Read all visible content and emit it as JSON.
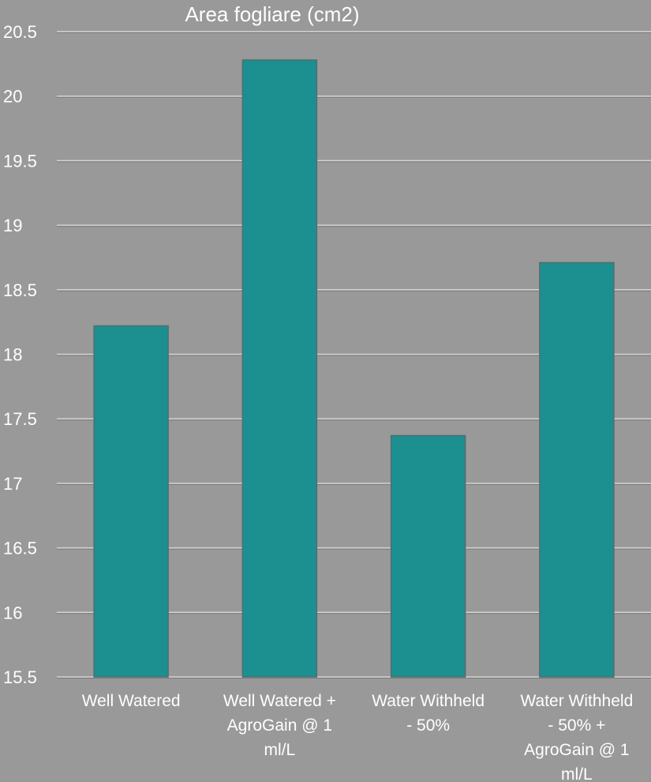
{
  "chart_data": {
    "type": "bar",
    "title": "Area fogliare (cm2)",
    "categories": [
      [
        "Well Watered"
      ],
      [
        "Well Watered +",
        "AgroGain @ 1",
        "ml/L"
      ],
      [
        "Water Withheld",
        "- 50%"
      ],
      [
        "Water Withheld",
        "- 50% +",
        "AgroGain @ 1",
        "ml/L"
      ]
    ],
    "values": [
      18.22,
      20.28,
      17.37,
      18.71
    ],
    "ylim": [
      15.5,
      20.5
    ],
    "yticks": [
      "15.5",
      "16",
      "16.5",
      "17",
      "17.5",
      "18",
      "18.5",
      "19",
      "19.5",
      "20",
      "20.5"
    ],
    "ytick_values": [
      15.5,
      16,
      16.5,
      17,
      17.5,
      18,
      18.5,
      19,
      19.5,
      20,
      20.5
    ],
    "grid": true,
    "bar_color": "#1c8f90",
    "background": "#999999"
  }
}
